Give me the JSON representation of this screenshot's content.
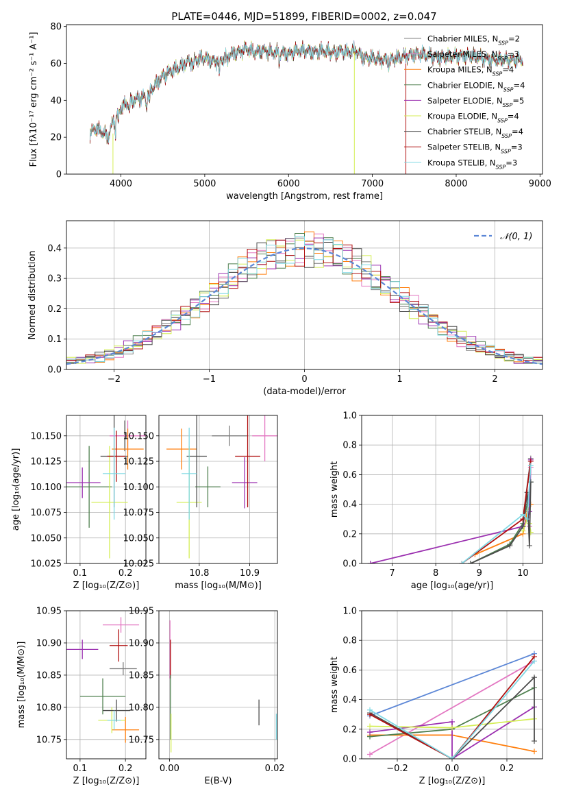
{
  "figure": {
    "title": "PLATE=0446, MJD=51899, FIBERID=0002, z=0.047"
  },
  "colors": {
    "Chabrier MILES": "#7f7f7f",
    "Salpeter MILES": "#e377c2",
    "Kroupa MILES": "#ff7f0e",
    "Chabrier ELODIE": "#4e7f4e",
    "Salpeter ELODIE": "#9b30b0",
    "Kroupa ELODIE": "#d4ee55",
    "Chabrier STELIB": "#4d4d4d",
    "Salpeter STELIB": "#b01010",
    "Kroupa STELIB": "#7fd8e4",
    "gaussian": "#5b86d6"
  },
  "chart_data": [
    {
      "id": "spectrum",
      "type": "line",
      "xlabel": "wavelength [Angstrom, rest frame]",
      "ylabel": "Flux [fλ10⁻¹⁷ erg cm⁻² s⁻¹ A⁻¹]",
      "xlim": [
        3350,
        9030
      ],
      "ylim": [
        0,
        81
      ],
      "xticks": [
        4000,
        5000,
        6000,
        7000,
        8000,
        9000
      ],
      "yticks": [
        0,
        20,
        40,
        60,
        80
      ],
      "legend": "top-right",
      "continuum": {
        "x": [
          3630,
          3700,
          3800,
          3850,
          3900,
          3950,
          4000,
          4100,
          4200,
          4300,
          4400,
          4500,
          4600,
          4700,
          4800,
          4900,
          5000,
          5100,
          5200,
          5300,
          5400,
          5500,
          5600,
          5700,
          5800,
          5900,
          6000,
          6100,
          6200,
          6300,
          6400,
          6500,
          6600,
          6700,
          6800,
          6900,
          7000,
          7100,
          7200,
          7300,
          7400,
          7500,
          7600,
          7800,
          8000,
          8200,
          8400,
          8600,
          8800
        ],
        "y": [
          22,
          25,
          22,
          20,
          28,
          32,
          36,
          39,
          41,
          42,
          48,
          53,
          56,
          58,
          61,
          62,
          63,
          61,
          62,
          65,
          66,
          68,
          66,
          67,
          66,
          66,
          65,
          67,
          67,
          66,
          67,
          66,
          67,
          66,
          67,
          63,
          63,
          62,
          62,
          63,
          64,
          65,
          65,
          63,
          64,
          64,
          62,
          62,
          62
        ]
      },
      "series": [
        {
          "name": "Chabrier MILES, N",
          "sub": "SSP",
          "suffix": "=2",
          "color_key": "Chabrier MILES"
        },
        {
          "name": "Salpeter MILES, N",
          "sub": "SSP",
          "suffix": "=3",
          "color_key": "Salpeter MILES"
        },
        {
          "name": "Kroupa MILES, N",
          "sub": "SSP",
          "suffix": "=4",
          "color_key": "Kroupa MILES"
        },
        {
          "name": "Chabrier ELODIE, N",
          "sub": "SSP",
          "suffix": "=4",
          "color_key": "Chabrier ELODIE"
        },
        {
          "name": "Salpeter ELODIE, N",
          "sub": "SSP",
          "suffix": "=5",
          "color_key": "Salpeter ELODIE"
        },
        {
          "name": "Kroupa ELODIE, N",
          "sub": "SSP",
          "suffix": "=4",
          "color_key": "Kroupa ELODIE"
        },
        {
          "name": "Chabrier STELIB, N",
          "sub": "SSP",
          "suffix": "=4",
          "color_key": "Chabrier STELIB"
        },
        {
          "name": "Salpeter STELIB, N",
          "sub": "SSP",
          "suffix": "=3",
          "color_key": "Salpeter STELIB"
        },
        {
          "name": "Kroupa STELIB, N",
          "sub": "SSP",
          "suffix": "=3",
          "color_key": "Kroupa STELIB"
        }
      ]
    },
    {
      "id": "residuals",
      "type": "histogram",
      "xlabel": "(data-model)/error",
      "ylabel": "Normed distribution",
      "xlim": [
        -2.5,
        2.5
      ],
      "ylim": [
        0,
        0.49
      ],
      "xticks": [
        -2,
        -1,
        0,
        1,
        2
      ],
      "yticks": [
        0.0,
        0.1,
        0.2,
        0.3,
        0.4
      ],
      "grid": true,
      "legend": "top-right",
      "gaussian_label": "𝒩(0, 1)",
      "bins": {
        "start": -2.5,
        "width": 0.1,
        "count": 50
      }
    },
    {
      "id": "age_vs_Z",
      "type": "errorbar",
      "xlabel": "Z [log₁₀(Z/Z⊙)]",
      "ylabel": "age  [log₁₀(age/yr)]",
      "xlim": [
        0.07,
        0.245
      ],
      "ylim": [
        10.025,
        10.17
      ],
      "xticks": [
        0.1,
        0.2
      ],
      "yticks": [
        10.025,
        10.05,
        10.075,
        10.1,
        10.125,
        10.15
      ],
      "points": [
        {
          "color_key": "Chabrier MILES",
          "x": 0.198,
          "y": 10.15,
          "xerr": 0.02,
          "yerr": 0.015
        },
        {
          "color_key": "Salpeter MILES",
          "x": 0.205,
          "y": 10.15,
          "xerr": 0.04,
          "yerr": 0.015
        },
        {
          "color_key": "Kroupa MILES",
          "x": 0.205,
          "y": 10.137,
          "xerr": 0.035,
          "yerr": 0.02
        },
        {
          "color_key": "Chabrier ELODIE",
          "x": 0.12,
          "y": 10.1,
          "xerr": 0.05,
          "yerr": 0.04
        },
        {
          "color_key": "Salpeter ELODIE",
          "x": 0.105,
          "y": 10.104,
          "xerr": 0.04,
          "yerr": 0.015
        },
        {
          "color_key": "Kroupa ELODIE",
          "x": 0.165,
          "y": 10.085,
          "xerr": 0.04,
          "yerr": 0.055
        },
        {
          "color_key": "Chabrier STELIB",
          "x": 0.175,
          "y": 10.13,
          "xerr": 0.03,
          "yerr": 0.05
        },
        {
          "color_key": "Salpeter STELIB",
          "x": 0.18,
          "y": 10.13,
          "xerr": 0.02,
          "yerr": 0.025
        },
        {
          "color_key": "Kroupa STELIB",
          "x": 0.175,
          "y": 10.113,
          "xerr": 0.025,
          "yerr": 0.045
        }
      ]
    },
    {
      "id": "age_vs_mass",
      "type": "errorbar",
      "xlabel": "mass [log₁₀(M/M⊙)]",
      "ylabel": "",
      "xlim": [
        10.72,
        10.955
      ],
      "ylim": [
        10.025,
        10.17
      ],
      "xticks": [
        10.8,
        10.9
      ],
      "yticks": [
        10.025,
        10.05,
        10.075,
        10.1,
        10.125,
        10.15
      ],
      "points": [
        {
          "color_key": "Chabrier MILES",
          "x": 10.86,
          "y": 10.15,
          "xerr": 0.035,
          "yerr": 0.01
        },
        {
          "color_key": "Salpeter MILES",
          "x": 10.93,
          "y": 10.15,
          "xerr": 0.025,
          "yerr": 0.025
        },
        {
          "color_key": "Kroupa MILES",
          "x": 10.765,
          "y": 10.137,
          "xerr": 0.03,
          "yerr": 0.02
        },
        {
          "color_key": "Chabrier ELODIE",
          "x": 10.817,
          "y": 10.1,
          "xerr": 0.025,
          "yerr": 0.02
        },
        {
          "color_key": "Salpeter ELODIE",
          "x": 10.89,
          "y": 10.104,
          "xerr": 0.025,
          "yerr": 0.025
        },
        {
          "color_key": "Kroupa ELODIE",
          "x": 10.78,
          "y": 10.085,
          "xerr": 0.025,
          "yerr": 0.055
        },
        {
          "color_key": "Chabrier STELIB",
          "x": 10.795,
          "y": 10.13,
          "xerr": 0.02,
          "yerr": 0.05
        },
        {
          "color_key": "Salpeter STELIB",
          "x": 10.896,
          "y": 10.13,
          "xerr": 0.025,
          "yerr": 0.05
        },
        {
          "color_key": "Kroupa STELIB",
          "x": 10.78,
          "y": 10.113,
          "xerr": 0.015,
          "yerr": 0.045
        }
      ]
    },
    {
      "id": "mass_weight_vs_age",
      "type": "line",
      "xlabel": "age  [log₁₀(age/yr)]",
      "ylabel": "mass weight",
      "xlim": [
        6.3,
        10.45
      ],
      "ylim": [
        0,
        1.0
      ],
      "xticks": [
        7,
        8,
        9,
        10
      ],
      "yticks": [
        0.0,
        0.2,
        0.4,
        0.6,
        0.8,
        1.0
      ],
      "grid": true,
      "series": [
        {
          "color_key": "Chabrier MILES",
          "x": [
            10.0,
            10.18
          ],
          "y": [
            0.3,
            0.71
          ]
        },
        {
          "color_key": "Salpeter MILES",
          "x": [
            10.1,
            10.15,
            10.18
          ],
          "y": [
            0.33,
            0.25,
            0.65
          ]
        },
        {
          "color_key": "Kroupa MILES",
          "x": [
            8.9,
            10.0,
            10.1,
            10.18
          ],
          "y": [
            0.06,
            0.2,
            0.35,
            0.4
          ]
        },
        {
          "color_key": "Chabrier ELODIE",
          "x": [
            8.8,
            9.7,
            10.0,
            10.1,
            10.18
          ],
          "y": [
            0.0,
            0.13,
            0.27,
            0.4,
            0.55
          ]
        },
        {
          "color_key": "Salpeter ELODIE",
          "x": [
            6.5,
            10.0,
            10.1,
            10.15,
            10.18
          ],
          "y": [
            0.0,
            0.25,
            0.3,
            0.35,
            0.7
          ]
        },
        {
          "color_key": "Kroupa ELODIE",
          "x": [
            10.0,
            10.1,
            10.15,
            10.18
          ],
          "y": [
            0.22,
            0.3,
            0.27,
            0.21
          ]
        },
        {
          "color_key": "Chabrier STELIB",
          "x": [
            8.8,
            9.7,
            10.0,
            10.1,
            10.15,
            10.18
          ],
          "y": [
            0.0,
            0.12,
            0.25,
            0.48,
            0.12,
            0.55
          ]
        },
        {
          "color_key": "Salpeter STELIB",
          "x": [
            8.6,
            10.0,
            10.18
          ],
          "y": [
            0.0,
            0.3,
            0.69
          ]
        },
        {
          "color_key": "Kroupa STELIB",
          "x": [
            8.6,
            10.0,
            10.1,
            10.18
          ],
          "y": [
            0.0,
            0.33,
            0.3,
            0.66
          ]
        }
      ]
    },
    {
      "id": "mass_vs_Z",
      "type": "errorbar",
      "xlabel": "Z [log₁₀(Z/Z⊙)]",
      "ylabel": "mass [log₁₀(M/M⊙)]",
      "xlim": [
        0.07,
        0.245
      ],
      "ylim": [
        10.72,
        10.95
      ],
      "xticks": [
        0.1,
        0.2
      ],
      "yticks": [
        10.75,
        10.8,
        10.85,
        10.9,
        10.95
      ],
      "points": [
        {
          "color_key": "Chabrier MILES",
          "x": 0.195,
          "y": 10.86,
          "xerr": 0.03,
          "yerr": 0.01
        },
        {
          "color_key": "Salpeter MILES",
          "x": 0.19,
          "y": 10.928,
          "xerr": 0.04,
          "yerr": 0.012
        },
        {
          "color_key": "Kroupa MILES",
          "x": 0.2,
          "y": 10.765,
          "xerr": 0.03,
          "yerr": 0.02
        },
        {
          "color_key": "Chabrier ELODIE",
          "x": 0.15,
          "y": 10.817,
          "xerr": 0.05,
          "yerr": 0.028
        },
        {
          "color_key": "Salpeter ELODIE",
          "x": 0.105,
          "y": 10.89,
          "xerr": 0.035,
          "yerr": 0.015
        },
        {
          "color_key": "Kroupa ELODIE",
          "x": 0.17,
          "y": 10.78,
          "xerr": 0.03,
          "yerr": 0.02
        },
        {
          "color_key": "Chabrier STELIB",
          "x": 0.18,
          "y": 10.795,
          "xerr": 0.03,
          "yerr": 0.017
        },
        {
          "color_key": "Salpeter STELIB",
          "x": 0.185,
          "y": 10.896,
          "xerr": 0.02,
          "yerr": 0.025
        },
        {
          "color_key": "Kroupa STELIB",
          "x": 0.175,
          "y": 10.78,
          "xerr": 0.015,
          "yerr": 0.015
        }
      ]
    },
    {
      "id": "mass_vs_ebv",
      "type": "errorbar",
      "xlabel": "E(B-V)",
      "ylabel": "",
      "xlim": [
        -0.002,
        0.0205
      ],
      "ylim": [
        10.72,
        10.95
      ],
      "xticks": [
        0.0,
        0.02
      ],
      "xtick_labels": [
        "0.00",
        "0.02"
      ],
      "yticks": [
        10.75,
        10.8,
        10.85,
        10.9,
        10.95
      ],
      "points": [
        {
          "color_key": "Salpeter MILES",
          "x": 0.0001,
          "y": 10.89,
          "xerr": 0,
          "yerr": 0.045
        },
        {
          "color_key": "Salpeter STELIB",
          "x": 0.0002,
          "y": 10.875,
          "xerr": 0,
          "yerr": 0.03
        },
        {
          "color_key": "Chabrier ELODIE",
          "x": 0.0002,
          "y": 10.8,
          "xerr": 0,
          "yerr": 0.05
        },
        {
          "color_key": "Kroupa ELODIE",
          "x": 0.0003,
          "y": 10.76,
          "xerr": 0,
          "yerr": 0.03
        },
        {
          "color_key": "Chabrier STELIB",
          "x": 0.017,
          "y": 10.792,
          "xerr": 0,
          "yerr": 0.02
        },
        {
          "color_key": "Kroupa STELIB",
          "x": 0.0203,
          "y": 10.77,
          "xerr": 0,
          "yerr": 0.02
        }
      ]
    },
    {
      "id": "mass_weight_vs_Z",
      "type": "line",
      "xlabel": "Z [log₁₀(Z/Z⊙)]",
      "ylabel": "mass weight",
      "xlim": [
        -0.33,
        0.33
      ],
      "ylim": [
        0,
        1.0
      ],
      "xticks": [
        -0.2,
        0.0,
        0.2
      ],
      "xtick_labels": [
        "−0.2",
        "0.0",
        "0.2"
      ],
      "yticks": [
        0.0,
        0.2,
        0.4,
        0.6,
        0.8,
        1.0
      ],
      "grid": true,
      "series": [
        {
          "color_key": "gaussian",
          "x": [
            -0.3,
            0.3
          ],
          "y": [
            0.29,
            0.71
          ]
        },
        {
          "color_key": "Salpeter MILES",
          "x": [
            -0.3,
            0.3
          ],
          "y": [
            0.03,
            0.66
          ]
        },
        {
          "color_key": "Kroupa MILES",
          "x": [
            -0.3,
            0.0,
            0.3
          ],
          "y": [
            0.16,
            0.16,
            0.05
          ]
        },
        {
          "color_key": "Chabrier ELODIE",
          "x": [
            -0.3,
            0.0,
            0.3
          ],
          "y": [
            0.15,
            0.2,
            0.48
          ]
        },
        {
          "color_key": "Salpeter ELODIE",
          "x": [
            -0.3,
            0.0,
            0.0,
            0.3
          ],
          "y": [
            0.18,
            0.25,
            0.0,
            0.35
          ]
        },
        {
          "color_key": "Kroupa ELODIE",
          "x": [
            -0.3,
            0.0,
            0.3
          ],
          "y": [
            0.22,
            0.21,
            0.27
          ]
        },
        {
          "color_key": "Chabrier STELIB",
          "x": [
            -0.3,
            0.0,
            0.3,
            0.3
          ],
          "y": [
            0.31,
            0.0,
            0.55,
            0.12
          ]
        },
        {
          "color_key": "Salpeter STELIB",
          "x": [
            -0.3,
            0.0,
            0.3
          ],
          "y": [
            0.3,
            0.0,
            0.69
          ]
        },
        {
          "color_key": "Kroupa STELIB",
          "x": [
            -0.3,
            0.0,
            0.3
          ],
          "y": [
            0.33,
            0.0,
            0.66
          ]
        }
      ]
    }
  ]
}
